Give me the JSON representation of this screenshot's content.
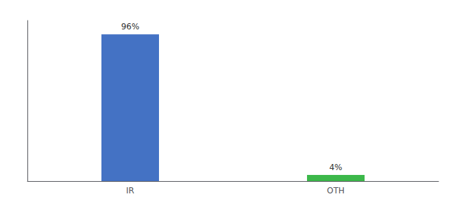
{
  "chart_data": {
    "type": "bar",
    "categories": [
      "IR",
      "OTH"
    ],
    "values": [
      96,
      4
    ],
    "value_labels": [
      "96%",
      "4%"
    ],
    "colors": [
      "#4472c4",
      "#3cb84a"
    ],
    "ylim": [
      0,
      105
    ],
    "grid": false,
    "data_labels": true,
    "tick_labels": "x"
  }
}
